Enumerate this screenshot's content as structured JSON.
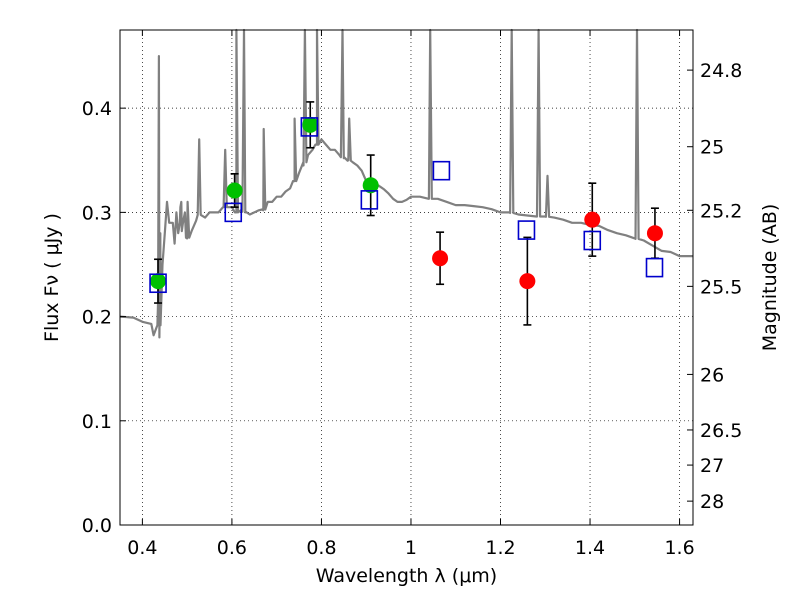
{
  "chart_data": {
    "type": "scatter",
    "xlabel": "Wavelength  λ (μm)",
    "ylabel": "Flux  Fν  ( μJy )",
    "ylabel_right": "Magnitude (AB)",
    "xlim": [
      0.35,
      1.63
    ],
    "ylim": [
      0.0,
      0.475
    ],
    "x_ticks": [
      0.4,
      0.6,
      0.8,
      1.0,
      1.2,
      1.4,
      1.6
    ],
    "x_tick_labels": [
      "0.4",
      "0.6",
      "0.8",
      "1",
      "1.2",
      "1.4",
      "1.6"
    ],
    "y_ticks": [
      0.0,
      0.1,
      0.2,
      0.3,
      0.4
    ],
    "y_tick_labels": [
      "0.0",
      "0.1",
      "0.2",
      "0.3",
      "0.4"
    ],
    "right_ticks": [
      {
        "label": "24.8",
        "flux": 0.4365
      },
      {
        "label": "25",
        "flux": 0.363
      },
      {
        "label": "25.2",
        "flux": 0.302
      },
      {
        "label": "25.5",
        "flux": 0.229
      },
      {
        "label": "26",
        "flux": 0.1445
      },
      {
        "label": "26.5",
        "flux": 0.0912
      },
      {
        "label": "27",
        "flux": 0.0575
      },
      {
        "label": "28",
        "flux": 0.0229
      }
    ],
    "grid": true,
    "colors": {
      "sed": "#808080",
      "green": "#00c000",
      "red": "#ff0000",
      "model_box": "#0000cc",
      "error_bar": "#000000"
    },
    "series": [
      {
        "marker": "filled-circle",
        "color": "#00c000",
        "points": [
          {
            "x": 0.435,
            "y": 0.234,
            "err": 0.021
          },
          {
            "x": 0.606,
            "y": 0.321,
            "err": 0.016
          },
          {
            "x": 0.775,
            "y": 0.384,
            "err": 0.022
          },
          {
            "x": 0.91,
            "y": 0.326,
            "err": 0.029
          }
        ]
      },
      {
        "marker": "filled-circle",
        "color": "#ff0000",
        "points": [
          {
            "x": 1.065,
            "y": 0.256,
            "err": 0.025
          },
          {
            "x": 1.26,
            "y": 0.234,
            "err": 0.042
          },
          {
            "x": 1.405,
            "y": 0.293,
            "err": 0.035
          },
          {
            "x": 1.545,
            "y": 0.28,
            "err": 0.024
          }
        ]
      },
      {
        "marker": "open-square",
        "color": "#0000cc",
        "points": [
          {
            "x": 0.435,
            "y": 0.232
          },
          {
            "x": 0.603,
            "y": 0.3
          },
          {
            "x": 0.773,
            "y": 0.382
          },
          {
            "x": 0.907,
            "y": 0.312
          },
          {
            "x": 1.068,
            "y": 0.34
          },
          {
            "x": 1.258,
            "y": 0.283
          },
          {
            "x": 1.405,
            "y": 0.273
          },
          {
            "x": 1.544,
            "y": 0.247
          }
        ]
      }
    ],
    "sed_curve": [
      [
        0.35,
        0.2
      ],
      [
        0.38,
        0.199
      ],
      [
        0.4,
        0.195
      ],
      [
        0.42,
        0.193
      ],
      [
        0.425,
        0.182
      ],
      [
        0.432,
        0.19
      ],
      [
        0.435,
        0.215
      ],
      [
        0.438,
        0.18
      ],
      [
        0.44,
        0.28
      ],
      [
        0.445,
        0.25
      ],
      [
        0.45,
        0.28
      ],
      [
        0.455,
        0.31
      ],
      [
        0.46,
        0.29
      ],
      [
        0.468,
        0.29
      ],
      [
        0.472,
        0.27
      ],
      [
        0.476,
        0.3
      ],
      [
        0.48,
        0.28
      ],
      [
        0.485,
        0.305
      ],
      [
        0.488,
        0.282
      ],
      [
        0.495,
        0.3
      ],
      [
        0.5,
        0.275
      ],
      [
        0.51,
        0.282
      ],
      [
        0.52,
        0.292
      ],
      [
        0.53,
        0.3
      ],
      [
        0.54,
        0.295
      ],
      [
        0.55,
        0.3
      ],
      [
        0.56,
        0.3
      ],
      [
        0.57,
        0.3
      ],
      [
        0.58,
        0.305
      ],
      [
        0.59,
        0.305
      ],
      [
        0.6,
        0.305
      ],
      [
        0.61,
        0.3
      ],
      [
        0.62,
        0.302
      ],
      [
        0.63,
        0.3
      ],
      [
        0.64,
        0.298
      ],
      [
        0.65,
        0.3
      ],
      [
        0.66,
        0.302
      ],
      [
        0.67,
        0.302
      ],
      [
        0.68,
        0.31
      ],
      [
        0.69,
        0.31
      ],
      [
        0.7,
        0.315
      ],
      [
        0.71,
        0.315
      ],
      [
        0.72,
        0.32
      ],
      [
        0.73,
        0.323
      ],
      [
        0.74,
        0.33
      ],
      [
        0.75,
        0.338
      ],
      [
        0.76,
        0.345
      ],
      [
        0.77,
        0.355
      ],
      [
        0.78,
        0.36
      ],
      [
        0.79,
        0.365
      ],
      [
        0.8,
        0.37
      ],
      [
        0.81,
        0.365
      ],
      [
        0.82,
        0.36
      ],
      [
        0.83,
        0.36
      ],
      [
        0.84,
        0.355
      ],
      [
        0.85,
        0.352
      ],
      [
        0.86,
        0.35
      ],
      [
        0.87,
        0.348
      ],
      [
        0.88,
        0.345
      ],
      [
        0.89,
        0.34
      ],
      [
        0.9,
        0.33
      ],
      [
        0.91,
        0.33
      ],
      [
        0.92,
        0.328
      ],
      [
        0.93,
        0.325
      ],
      [
        0.94,
        0.322
      ],
      [
        0.95,
        0.318
      ],
      [
        0.96,
        0.313
      ],
      [
        0.97,
        0.31
      ],
      [
        0.98,
        0.31
      ],
      [
        0.99,
        0.312
      ],
      [
        1.0,
        0.315
      ],
      [
        1.02,
        0.315
      ],
      [
        1.04,
        0.313
      ],
      [
        1.06,
        0.313
      ],
      [
        1.08,
        0.31
      ],
      [
        1.1,
        0.307
      ],
      [
        1.12,
        0.307
      ],
      [
        1.14,
        0.306
      ],
      [
        1.16,
        0.305
      ],
      [
        1.18,
        0.303
      ],
      [
        1.2,
        0.3
      ],
      [
        1.22,
        0.3
      ],
      [
        1.24,
        0.298
      ],
      [
        1.26,
        0.297
      ],
      [
        1.28,
        0.296
      ],
      [
        1.3,
        0.296
      ],
      [
        1.32,
        0.295
      ],
      [
        1.34,
        0.293
      ],
      [
        1.36,
        0.29
      ],
      [
        1.38,
        0.29
      ],
      [
        1.4,
        0.288
      ],
      [
        1.42,
        0.287
      ],
      [
        1.44,
        0.283
      ],
      [
        1.46,
        0.28
      ],
      [
        1.48,
        0.278
      ],
      [
        1.5,
        0.275
      ],
      [
        1.52,
        0.273
      ],
      [
        1.54,
        0.268
      ],
      [
        1.56,
        0.263
      ],
      [
        1.58,
        0.262
      ],
      [
        1.6,
        0.258
      ],
      [
        1.63,
        0.258
      ]
    ],
    "sed_lines": [
      {
        "x": 0.437,
        "peak": 0.45
      },
      {
        "x": 0.487,
        "peak": 0.31
      },
      {
        "x": 0.501,
        "peak": 0.31
      },
      {
        "x": 0.527,
        "peak": 0.37
      },
      {
        "x": 0.585,
        "peak": 0.36
      },
      {
        "x": 0.61,
        "peak": 0.475
      },
      {
        "x": 0.627,
        "peak": 0.475
      },
      {
        "x": 0.671,
        "peak": 0.38
      },
      {
        "x": 0.74,
        "peak": 0.39
      },
      {
        "x": 0.763,
        "peak": 0.475
      },
      {
        "x": 0.79,
        "peak": 0.475
      },
      {
        "x": 0.847,
        "peak": 0.475
      },
      {
        "x": 0.862,
        "peak": 0.39
      },
      {
        "x": 1.043,
        "peak": 0.475
      },
      {
        "x": 1.225,
        "peak": 0.475
      },
      {
        "x": 1.285,
        "peak": 0.475
      },
      {
        "x": 1.305,
        "peak": 0.335
      },
      {
        "x": 1.505,
        "peak": 0.475
      }
    ]
  }
}
